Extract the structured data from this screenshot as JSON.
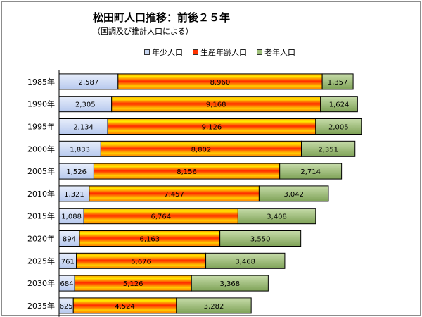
{
  "chart_data": {
    "type": "bar",
    "orientation": "horizontal",
    "stacked": true,
    "title": "松田町人口推移：前後２５年",
    "subtitle": "（国調及び推計人口による）",
    "legend_position": "top",
    "categories": [
      "1985年",
      "1990年",
      "1995年",
      "2000年",
      "2005年",
      "2010年",
      "2015年",
      "2020年",
      "2025年",
      "2030年",
      "2035年"
    ],
    "series": [
      {
        "name": "年少人口",
        "values": [
          2587,
          2305,
          2134,
          1833,
          1526,
          1321,
          1088,
          894,
          761,
          684,
          625
        ]
      },
      {
        "name": "生産年齢人口",
        "values": [
          8960,
          9168,
          9126,
          8802,
          8156,
          7457,
          6764,
          6163,
          5676,
          5126,
          4524
        ]
      },
      {
        "name": "老年人口",
        "values": [
          1357,
          1624,
          2005,
          2351,
          2714,
          3042,
          3408,
          3550,
          3468,
          3368,
          3282
        ]
      }
    ],
    "value_labels": [
      [
        "2,587",
        "8,960",
        "1,357"
      ],
      [
        "2,305",
        "9,168",
        "1,624"
      ],
      [
        "2,134",
        "9,126",
        "2,005"
      ],
      [
        "1,833",
        "8,802",
        "2,351"
      ],
      [
        "1,526",
        "8,156",
        "2,714"
      ],
      [
        "1,321",
        "7,457",
        "3,042"
      ],
      [
        "1,088",
        "6,764",
        "3,408"
      ],
      [
        "894",
        "6,163",
        "3,550"
      ],
      [
        "761",
        "5,676",
        "3,468"
      ],
      [
        "684",
        "5,126",
        "3,368"
      ],
      [
        "625",
        "4,524",
        "3,282"
      ]
    ],
    "colors": {
      "young": "#c9d7f2",
      "working_top": "#ffd700",
      "working_mid": "#ff3300",
      "old": "#9fbf7a",
      "axis": "#000000"
    },
    "xlim": [
      0,
      15000
    ],
    "grid": false
  }
}
